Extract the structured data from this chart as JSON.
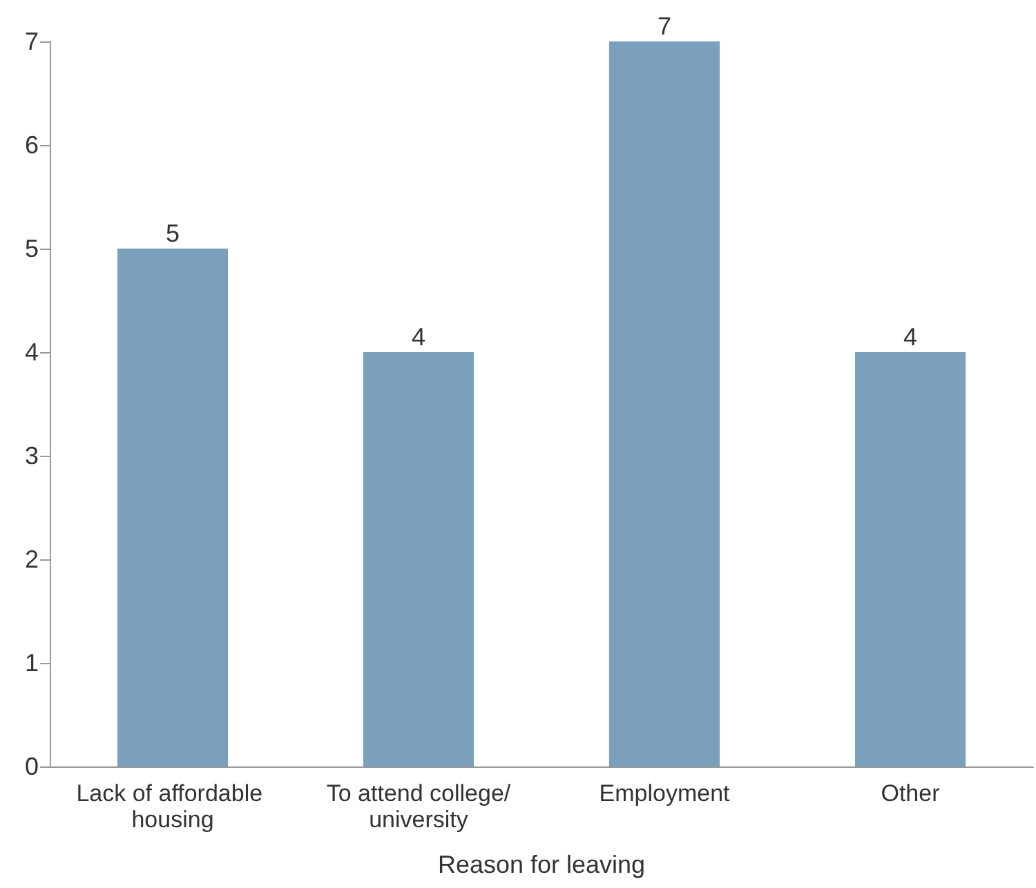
{
  "chart_data": {
    "type": "bar",
    "xlabel": "Reason for leaving",
    "categories": [
      "Lack of affordable housing",
      "To attend college/university",
      "Employment",
      "Other"
    ],
    "values": [
      5,
      4,
      7,
      4
    ],
    "color": "#7aa0bc",
    "ylim": [
      0,
      7
    ],
    "yticks": [
      0,
      1,
      2,
      3,
      4,
      5,
      6,
      7
    ],
    "grid": false,
    "data_labels": true
  }
}
